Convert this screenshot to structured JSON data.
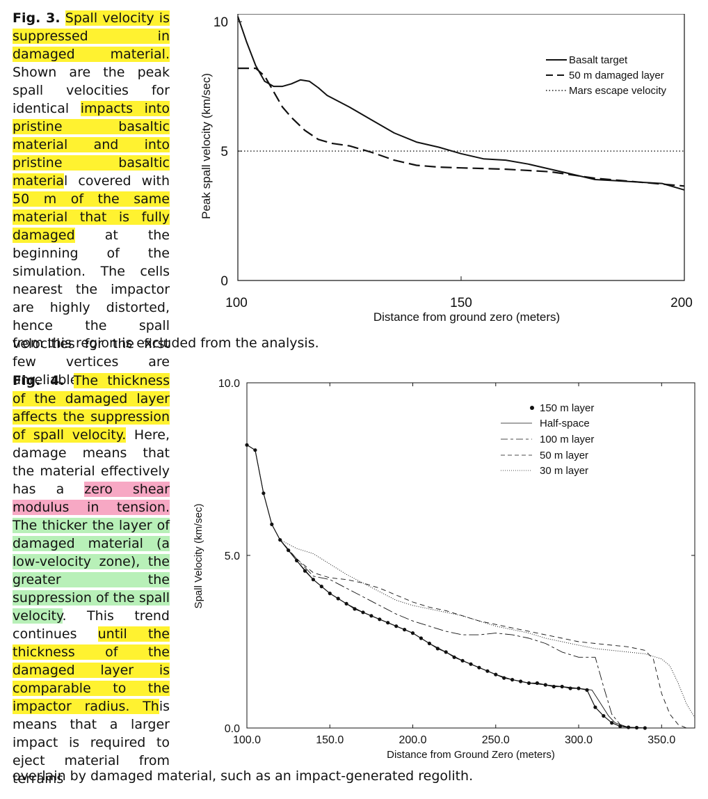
{
  "fig3": {
    "caption": {
      "num": "Fig. 3.",
      "parts": [
        {
          "text": "Spall velocity is suppressed in damaged material.",
          "hl": "y"
        },
        {
          "text": " Shown are the peak spall velocities for identical ",
          "hl": ""
        },
        {
          "text": "impacts into pristine basaltic material and into pristine basaltic materia",
          "hl": "y"
        },
        {
          "text": "l covered with ",
          "hl": ""
        },
        {
          "text": "50 m of the same material that is fully damaged",
          "hl": "y"
        },
        {
          "text": " at the beginning of the simulation. The cells nearest the impactor are highly distorted, hence the spall velocities for the first few vertices are unreliable. Material",
          "hl": ""
        }
      ],
      "tail": "from this region is excluded from the analysis."
    },
    "chart_data": {
      "type": "line",
      "xlabel": "Distance from ground zero (meters)",
      "ylabel": "Peak spall velocity (km/sec)",
      "xlim": [
        100,
        200
      ],
      "ylim": [
        0,
        10.3
      ],
      "xticks": [
        100,
        150,
        200
      ],
      "yticks": [
        0,
        5,
        10
      ],
      "legend_position": "top-right",
      "series": [
        {
          "name": "Basalt target",
          "style": "solid",
          "x": [
            100,
            102,
            104,
            106,
            108,
            110,
            112,
            114,
            116,
            118,
            120,
            125,
            130,
            135,
            140,
            145,
            150,
            155,
            160,
            165,
            170,
            175,
            180,
            185,
            190,
            195,
            200
          ],
          "y": [
            10.2,
            9.2,
            8.3,
            7.7,
            7.5,
            7.5,
            7.6,
            7.75,
            7.7,
            7.45,
            7.15,
            6.7,
            6.2,
            5.7,
            5.35,
            5.15,
            4.9,
            4.7,
            4.65,
            4.5,
            4.3,
            4.1,
            3.9,
            3.85,
            3.8,
            3.75,
            3.5
          ]
        },
        {
          "name": "50 m damaged layer",
          "style": "dashed",
          "x": [
            100,
            104,
            106,
            108,
            110,
            112,
            115,
            118,
            121,
            125,
            130,
            135,
            140,
            145,
            150,
            160,
            170,
            180,
            190,
            200
          ],
          "y": [
            8.2,
            8.2,
            7.9,
            7.3,
            6.7,
            6.3,
            5.8,
            5.45,
            5.3,
            5.2,
            4.95,
            4.65,
            4.45,
            4.38,
            4.35,
            4.3,
            4.2,
            3.95,
            3.8,
            3.65
          ]
        },
        {
          "name": "Mars escape velocity",
          "style": "dotted",
          "x": [
            100,
            200
          ],
          "y": [
            5.0,
            5.0
          ]
        }
      ]
    }
  },
  "fig4": {
    "caption": {
      "num": "Fig. 4.",
      "parts": [
        {
          "text": "The thickness of the damaged layer affects the suppression of spall velocity.",
          "hl": "y"
        },
        {
          "text": " Here, damage means that the material effectively has a ",
          "hl": ""
        },
        {
          "text": "zero shear modulus in tension.",
          "hl": "p"
        },
        {
          "text": " ",
          "hl": ""
        },
        {
          "text": "The thicker the layer of damaged material (a low-velocity zone), the greater the suppression of the spall velocity",
          "hl": "g"
        },
        {
          "text": ". This trend continues ",
          "hl": ""
        },
        {
          "text": "until the thickness of the damaged layer is comparable to the impactor radius. Th",
          "hl": "y"
        },
        {
          "text": "is means that a larger impact is required to eject material from terrains",
          "hl": ""
        }
      ],
      "tail": "overlain by damaged material, such as an impact-generated regolith."
    },
    "chart_data": {
      "type": "line",
      "xlabel": "Distance from Ground Zero (meters)",
      "ylabel": "Spall Velocity (km/sec)",
      "xlim": [
        100,
        370
      ],
      "ylim": [
        0,
        10
      ],
      "xticks": [
        "100.0",
        "150.0",
        "200.0",
        "250.0",
        "300.0",
        "350.0"
      ],
      "yticks": [
        "0.0",
        "5.0",
        "10.0"
      ],
      "legend_position": "top-right",
      "series": [
        {
          "name": "150 m layer",
          "style": "dots",
          "x": [
            100,
            105,
            110,
            115,
            120,
            125,
            130,
            135,
            140,
            145,
            150,
            155,
            160,
            165,
            170,
            175,
            180,
            185,
            190,
            195,
            200,
            205,
            210,
            215,
            220,
            225,
            230,
            235,
            240,
            245,
            250,
            255,
            260,
            265,
            270,
            275,
            280,
            285,
            290,
            295,
            300,
            305,
            310,
            315,
            320,
            325,
            330,
            335,
            340
          ],
          "y": [
            8.2,
            8.05,
            6.8,
            5.9,
            5.45,
            5.15,
            4.85,
            4.55,
            4.3,
            4.1,
            3.9,
            3.75,
            3.6,
            3.45,
            3.35,
            3.25,
            3.15,
            3.05,
            2.95,
            2.85,
            2.75,
            2.6,
            2.45,
            2.3,
            2.2,
            2.05,
            1.95,
            1.85,
            1.75,
            1.65,
            1.55,
            1.45,
            1.4,
            1.35,
            1.3,
            1.3,
            1.25,
            1.2,
            1.2,
            1.15,
            1.15,
            1.1,
            0.6,
            0.35,
            0.15,
            0.05,
            0.02,
            0.01,
            0.0
          ]
        },
        {
          "name": "Half-space",
          "style": "solid",
          "x": [
            100,
            105,
            110,
            115,
            120,
            130,
            140,
            150,
            160,
            170,
            180,
            190,
            200,
            210,
            220,
            230,
            240,
            250,
            260,
            270,
            280,
            290,
            300,
            308,
            312,
            318,
            322,
            330,
            340
          ],
          "y": [
            8.2,
            8.05,
            6.8,
            5.9,
            5.45,
            4.85,
            4.3,
            3.9,
            3.6,
            3.35,
            3.15,
            2.95,
            2.75,
            2.45,
            2.2,
            1.95,
            1.75,
            1.55,
            1.4,
            1.3,
            1.25,
            1.2,
            1.15,
            1.1,
            0.8,
            0.35,
            0.15,
            0.02,
            0.0
          ]
        },
        {
          "name": "100 m layer",
          "style": "longdash",
          "x": [
            120,
            130,
            140,
            150,
            160,
            170,
            180,
            190,
            200,
            210,
            220,
            230,
            240,
            250,
            260,
            270,
            280,
            290,
            300,
            310,
            315,
            320,
            325,
            330
          ],
          "y": [
            5.45,
            4.9,
            4.4,
            4.3,
            4.05,
            3.8,
            3.55,
            3.3,
            3.1,
            2.95,
            2.8,
            2.7,
            2.7,
            2.75,
            2.7,
            2.6,
            2.45,
            2.2,
            2.05,
            2.05,
            1.2,
            0.4,
            0.1,
            0.0
          ]
        },
        {
          "name": "50 m layer",
          "style": "dashed",
          "x": [
            120,
            130,
            140,
            150,
            160,
            170,
            180,
            190,
            200,
            210,
            220,
            230,
            240,
            250,
            260,
            270,
            280,
            290,
            300,
            310,
            320,
            330,
            340,
            345,
            350,
            355,
            360,
            365
          ],
          "y": [
            5.45,
            4.9,
            4.5,
            4.35,
            4.3,
            4.2,
            4.05,
            3.85,
            3.65,
            3.5,
            3.4,
            3.25,
            3.1,
            3.0,
            2.9,
            2.8,
            2.7,
            2.6,
            2.5,
            2.45,
            2.4,
            2.35,
            2.25,
            2.0,
            1.0,
            0.4,
            0.1,
            0.0
          ]
        },
        {
          "name": "30 m layer",
          "style": "dotted",
          "x": [
            120,
            130,
            140,
            150,
            160,
            170,
            180,
            190,
            200,
            210,
            220,
            230,
            240,
            250,
            260,
            270,
            280,
            290,
            300,
            310,
            320,
            330,
            340,
            350,
            355,
            360,
            365,
            370
          ],
          "y": [
            5.45,
            5.2,
            5.05,
            4.75,
            4.45,
            4.2,
            3.95,
            3.7,
            3.55,
            3.45,
            3.35,
            3.25,
            3.1,
            2.95,
            2.85,
            2.75,
            2.6,
            2.5,
            2.4,
            2.3,
            2.25,
            2.2,
            2.15,
            2.0,
            1.8,
            1.3,
            0.7,
            0.3
          ]
        }
      ]
    }
  }
}
